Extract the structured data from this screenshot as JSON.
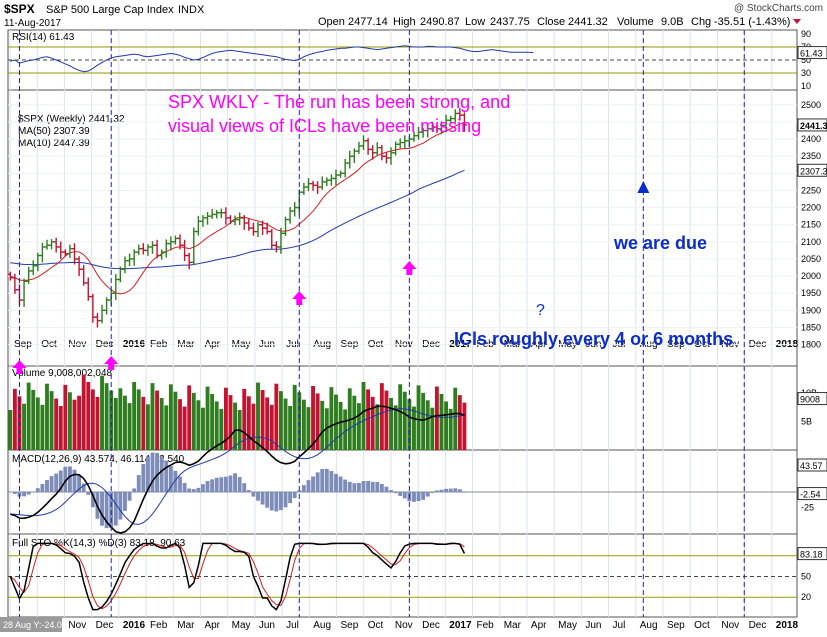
{
  "header": {
    "symbol": "$SPX",
    "name": "S&P 500 Large Cap Index",
    "exchange": "INDX",
    "date": "11-Aug-2017",
    "watermark": "@ StockCharts.com",
    "quote": {
      "open_label": "Open",
      "open": "2477.14",
      "high_label": "High",
      "high": "2490.87",
      "low_label": "Low",
      "low": "2437.75",
      "close_label": "Close",
      "close": "2441.32",
      "volume_label": "Volume",
      "volume": "9.0B",
      "chg_label": "Chg",
      "chg": "-35.51 (-1.43%)"
    }
  },
  "annotations": {
    "headline_line1": "SPX WKLY -  The run has been strong, and",
    "headline_line2": "visual views of ICLs have been missing",
    "due": "we are due",
    "icl_cycle": "ICls roughly every 4 or 6  months",
    "question": "?"
  },
  "colors": {
    "up_bar": "#2e7d1e",
    "down_bar": "#c4122f",
    "ma_fast": "#d21f1f",
    "ma_slow": "#1f3aa8",
    "magenta": "#ff00ff",
    "marker_blue": "#0a2dc8",
    "vline": "#2222aa",
    "ref_line": "#9a9a00"
  },
  "months": [
    "Sep",
    "Oct",
    "Nov",
    "Dec",
    "2016",
    "Feb",
    "Mar",
    "Apr",
    "May",
    "Jun",
    "Jul",
    "Aug",
    "Sep",
    "Oct",
    "Nov",
    "Dec",
    "2017",
    "Feb",
    "Mar",
    "Apr",
    "May",
    "Jun",
    "Jul",
    "Aug",
    "Sep",
    "Oct",
    "Nov",
    "Dec",
    "2018"
  ],
  "bottom_months": [
    "Sep",
    "Oct",
    "Nov",
    "Dec",
    "2016",
    "Feb",
    "Mar",
    "Apr",
    "May",
    "Jun",
    "Jul",
    "Aug",
    "Sep",
    "Oct",
    "Nov",
    "Dec",
    "2017",
    "Feb",
    "Mar",
    "Apr",
    "May",
    "Jun",
    "Jul",
    "Aug",
    "Sep",
    "Oct",
    "Nov",
    "Dec",
    "2018"
  ],
  "bottom_readout": "28 Aug Y:-24.02",
  "vlines_weeks": [
    2,
    22,
    63,
    87,
    138,
    160
  ],
  "rsi": {
    "label": "RSI(14) 61.43",
    "value_tag": "61.43",
    "ticks": [
      "90",
      "70",
      "50",
      "30",
      "10"
    ],
    "values": [
      48,
      50,
      45,
      47,
      49,
      50,
      52,
      54,
      55,
      53,
      50,
      47,
      44,
      41,
      37,
      34,
      32,
      33,
      37,
      42,
      46,
      50,
      53,
      55,
      56,
      57,
      58,
      59,
      58,
      56,
      55,
      56,
      57,
      58,
      59,
      60,
      59,
      57,
      54,
      52,
      50,
      51,
      54,
      57,
      60,
      62,
      63,
      64,
      65,
      64,
      63,
      62,
      61,
      60,
      59,
      58,
      57,
      56,
      55,
      53,
      51,
      50,
      49,
      51,
      55,
      58,
      60,
      62,
      63,
      65,
      66,
      67,
      68,
      68,
      69,
      70,
      70,
      69,
      68,
      67,
      66,
      67,
      68,
      69,
      70,
      71,
      72,
      71,
      70,
      70,
      70,
      71,
      71,
      70,
      70,
      70,
      70,
      69,
      68,
      66,
      64,
      63,
      63,
      64,
      65,
      66,
      65,
      64,
      63,
      62,
      62,
      62,
      62,
      62,
      61.43
    ]
  },
  "price": {
    "label": "$SPX (Weekly) 2441.32",
    "ma50_label": "MA(50) 2307.39",
    "ma10_label": "MA(10) 2447.39",
    "last_tag": "2441.32",
    "ma50_tag": "2307.39",
    "ticks": [
      "2500",
      "2450",
      "2400",
      "2350",
      "2300",
      "2250",
      "2200",
      "2150",
      "2100",
      "2050",
      "2000",
      "1950",
      "1900",
      "1850",
      "1800"
    ],
    "ylim": [
      1790,
      2520
    ]
  },
  "volume": {
    "label": "Volume 9,008,002,048",
    "tag": "9008",
    "ticks": [
      "10B",
      "5B"
    ]
  },
  "macd": {
    "label": "MACD(12,26,9) 43.574, 46.114, -2.540",
    "tags": [
      "43.57",
      "46.11",
      "-2.54"
    ],
    "ticks": [
      "0",
      "-25"
    ],
    "histogram_zero_label": "0"
  },
  "sto": {
    "label": "Full STO %K(14,3) %D(3) 83.18, 90.63",
    "tags": [
      "90.63",
      "83.18"
    ],
    "ticks": [
      "80",
      "50",
      "20"
    ]
  },
  "chart_data": {
    "type": "ohlc",
    "title": "$SPX S&P 500 Large Cap Index INDX",
    "weekly_close": [
      1995,
      1960,
      1930,
      1985,
      2015,
      2030,
      2060,
      2085,
      2090,
      2100,
      2085,
      2070,
      2065,
      2080,
      2050,
      2020,
      1980,
      1940,
      1880,
      1870,
      1900,
      1930,
      1950,
      1990,
      2020,
      2045,
      2050,
      2070,
      2080,
      2075,
      2085,
      2090,
      2060,
      2070,
      2095,
      2100,
      2110,
      2090,
      2060,
      2040,
      2130,
      2160,
      2170,
      2175,
      2180,
      2185,
      2185,
      2170,
      2160,
      2165,
      2170,
      2155,
      2140,
      2130,
      2150,
      2140,
      2130,
      2090,
      2085,
      2125,
      2165,
      2190,
      2200,
      2245,
      2260,
      2270,
      2265,
      2260,
      2275,
      2280,
      2285,
      2295,
      2300,
      2330,
      2350,
      2365,
      2380,
      2395,
      2370,
      2360,
      2375,
      2350,
      2345,
      2360,
      2385,
      2390,
      2395,
      2400,
      2410,
      2420,
      2425,
      2430,
      2435,
      2430,
      2440,
      2455,
      2460,
      2475,
      2470,
      2441.32
    ],
    "ma10_end": 2447.39,
    "ma50_end": 2307.39
  }
}
